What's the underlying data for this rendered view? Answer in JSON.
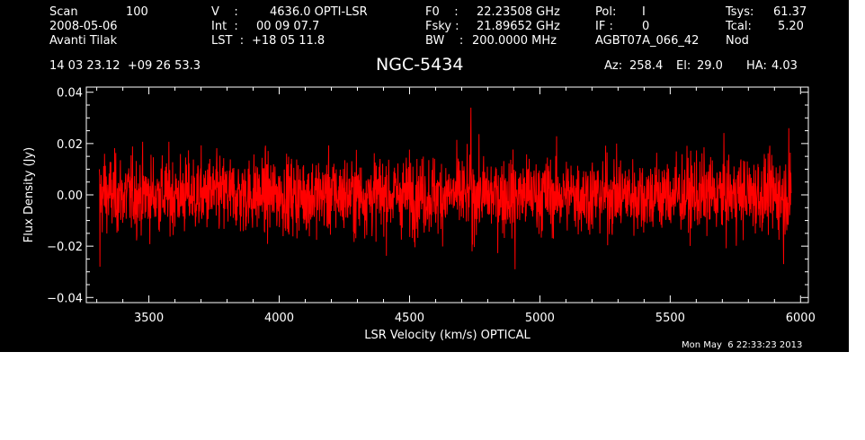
{
  "header": {
    "scan_label": "Scan",
    "scan_value": "100",
    "date": "2008-05-06",
    "observer": "Avanti Tilak",
    "v_label": "V    :",
    "v_value": "4636.0 OPTI-LSR",
    "int_label": "Int  :",
    "int_value": "00 09 07.7",
    "lst_label": "LST  :",
    "lst_value": "+18 05 11.8",
    "f0_label": "F0    :",
    "f0_value": "22.23508 GHz",
    "fsky_label": "Fsky :",
    "fsky_value": "21.89652 GHz",
    "bw_label": "BW    :",
    "bw_value": "200.0000 MHz",
    "pol_label": "Pol:",
    "pol_value": "I",
    "if_label": "IF :",
    "if_value": "0",
    "project": "AGBT07A_066_42",
    "tsys_label": "Tsys:",
    "tsys_value": "61.37",
    "tcal_label": "Tcal:",
    "tcal_value": "5.20",
    "mode": "Nod",
    "coords": "14 03 23.12  +09 26 53.3",
    "source": "NGC-5434",
    "az_label": "Az:",
    "az_value": "258.4",
    "el_label": "El:",
    "el_value": "29.0",
    "ha_label": "HA:",
    "ha_value": "4.03",
    "timestamp": "Mon May  6 22:33:23 2013"
  },
  "colors": {
    "background": "#000000",
    "axes": "#ffffff",
    "trace": "#ff0000"
  },
  "chart_data": {
    "type": "line",
    "xlabel": "LSR Velocity (km/s) OPTICAL",
    "ylabel": "Flux Density (Jy)",
    "xlim": [
      3260,
      6030
    ],
    "ylim": [
      -0.042,
      0.042
    ],
    "xticks": [
      3500,
      4000,
      4500,
      5000,
      5500,
      6000
    ],
    "xtick_labels": [
      "3500",
      "4000",
      "4500",
      "5000",
      "5500",
      "6000"
    ],
    "yticks": [
      -0.04,
      -0.02,
      0.0,
      0.02,
      0.04
    ],
    "ytick_labels": [
      "−0.04",
      "−0.02",
      "0.00",
      "0.02",
      "0.04"
    ],
    "grid": false,
    "series": [
      {
        "x_start": 3310,
        "x_end": 5965,
        "channels": 2400,
        "noise_rms": 0.0075,
        "peak_points": [
          {
            "x": 3312,
            "y": -0.028
          },
          {
            "x": 3330,
            "y": 0.016
          },
          {
            "x": 4735,
            "y": 0.034
          },
          {
            "x": 4740,
            "y": -0.022
          },
          {
            "x": 4905,
            "y": -0.029
          },
          {
            "x": 5935,
            "y": -0.027
          },
          {
            "x": 5955,
            "y": 0.026
          },
          {
            "x": 5962,
            "y": -0.004
          }
        ]
      }
    ]
  }
}
